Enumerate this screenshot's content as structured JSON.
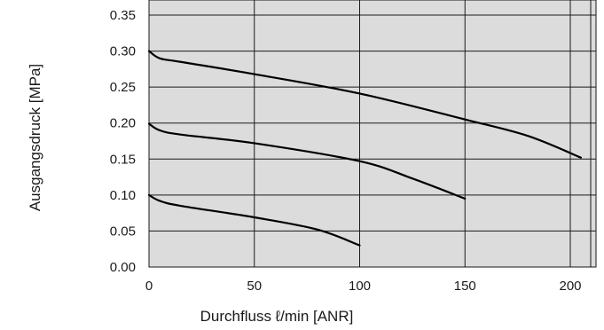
{
  "chart_data": {
    "type": "line",
    "xlabel": "Durchfluss ℓ/min [ANR]",
    "ylabel": "Ausgangsdruck [MPa]",
    "xlim": [
      0,
      207
    ],
    "ylim": [
      0,
      0.36
    ],
    "x_ticks": [
      "0",
      "50",
      "100",
      "150",
      "200"
    ],
    "x_tick_values": [
      0,
      50,
      100,
      150,
      200
    ],
    "y_ticks": [
      "0.00",
      "0.05",
      "0.10",
      "0.15",
      "0.20",
      "0.25",
      "0.30",
      "0.35"
    ],
    "y_tick_values": [
      0,
      0.05,
      0.1,
      0.15,
      0.2,
      0.25,
      0.3,
      0.35
    ],
    "grid": true,
    "plot_background": "#dcdcdc",
    "series": [
      {
        "x": [
          0,
          5,
          15,
          50,
          100,
          150,
          180,
          205
        ],
        "y": [
          0.3,
          0.29,
          0.285,
          0.268,
          0.241,
          0.205,
          0.182,
          0.152
        ]
      },
      {
        "x": [
          0,
          5,
          15,
          50,
          100,
          125,
          150
        ],
        "y": [
          0.199,
          0.19,
          0.184,
          0.172,
          0.147,
          0.123,
          0.095
        ]
      },
      {
        "x": [
          0,
          5,
          15,
          50,
          80,
          100
        ],
        "y": [
          0.1,
          0.092,
          0.085,
          0.069,
          0.052,
          0.03
        ]
      }
    ]
  }
}
